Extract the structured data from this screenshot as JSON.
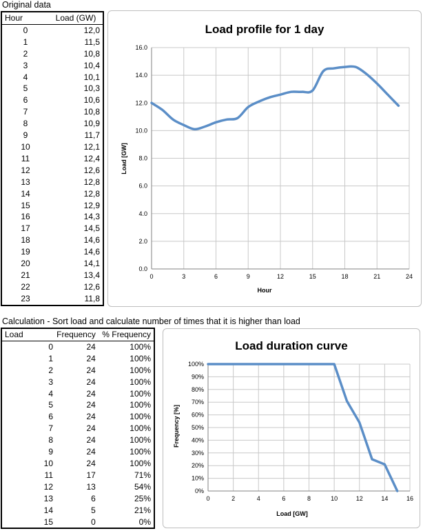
{
  "sheet1": {
    "caption": "Original data",
    "headers": [
      "Hour",
      "Load (GW)"
    ],
    "rows": [
      [
        "0",
        "12,0"
      ],
      [
        "1",
        "11,5"
      ],
      [
        "2",
        "10,8"
      ],
      [
        "3",
        "10,4"
      ],
      [
        "4",
        "10,1"
      ],
      [
        "5",
        "10,3"
      ],
      [
        "6",
        "10,6"
      ],
      [
        "7",
        "10,8"
      ],
      [
        "8",
        "10,9"
      ],
      [
        "9",
        "11,7"
      ],
      [
        "10",
        "12,1"
      ],
      [
        "11",
        "12,4"
      ],
      [
        "12",
        "12,6"
      ],
      [
        "13",
        "12,8"
      ],
      [
        "14",
        "12,8"
      ],
      [
        "15",
        "12,9"
      ],
      [
        "16",
        "14,3"
      ],
      [
        "17",
        "14,5"
      ],
      [
        "18",
        "14,6"
      ],
      [
        "19",
        "14,6"
      ],
      [
        "20",
        "14,1"
      ],
      [
        "21",
        "13,4"
      ],
      [
        "22",
        "12,6"
      ],
      [
        "23",
        "11,8"
      ]
    ]
  },
  "sheet2": {
    "caption": "Calculation - Sort load and calculate number of times that it is higher than load",
    "headers": [
      "Load",
      "Frequency",
      "% Frequency"
    ],
    "rows": [
      [
        "0",
        "24",
        "100%"
      ],
      [
        "1",
        "24",
        "100%"
      ],
      [
        "2",
        "24",
        "100%"
      ],
      [
        "3",
        "24",
        "100%"
      ],
      [
        "4",
        "24",
        "100%"
      ],
      [
        "5",
        "24",
        "100%"
      ],
      [
        "6",
        "24",
        "100%"
      ],
      [
        "7",
        "24",
        "100%"
      ],
      [
        "8",
        "24",
        "100%"
      ],
      [
        "9",
        "24",
        "100%"
      ],
      [
        "10",
        "24",
        "100%"
      ],
      [
        "11",
        "17",
        "71%"
      ],
      [
        "12",
        "13",
        "54%"
      ],
      [
        "13",
        "6",
        "25%"
      ],
      [
        "14",
        "5",
        "21%"
      ],
      [
        "15",
        "0",
        "0%"
      ]
    ]
  },
  "chart_data": [
    {
      "type": "line",
      "title": "Load profile for 1 day",
      "xlabel": "Hour",
      "ylabel": "Load [GW]",
      "xlim": [
        0,
        24
      ],
      "ylim": [
        0,
        16
      ],
      "xticks": [
        0,
        3,
        6,
        9,
        12,
        15,
        18,
        21,
        24
      ],
      "yticks": [
        0,
        2,
        4,
        6,
        8,
        10,
        12,
        14,
        16
      ],
      "ytick_labels": [
        "0.0",
        "2.0",
        "4.0",
        "6.0",
        "8.0",
        "10.0",
        "12.0",
        "14.0",
        "16.0"
      ],
      "grid": true,
      "smooth": true,
      "color": "#5b8ec7",
      "x": [
        0,
        1,
        2,
        3,
        4,
        5,
        6,
        7,
        8,
        9,
        10,
        11,
        12,
        13,
        14,
        15,
        16,
        17,
        18,
        19,
        20,
        21,
        22,
        23
      ],
      "y": [
        12.0,
        11.5,
        10.8,
        10.4,
        10.1,
        10.3,
        10.6,
        10.8,
        10.9,
        11.7,
        12.1,
        12.4,
        12.6,
        12.8,
        12.8,
        12.9,
        14.3,
        14.5,
        14.6,
        14.6,
        14.1,
        13.4,
        12.6,
        11.8
      ]
    },
    {
      "type": "line",
      "title": "Load duration curve",
      "xlabel": "Load [GW]",
      "ylabel": "Frequency [%]",
      "xlim": [
        0,
        16
      ],
      "ylim": [
        0,
        100
      ],
      "xticks": [
        0,
        2,
        4,
        6,
        8,
        10,
        12,
        14,
        16
      ],
      "yticks": [
        0,
        10,
        20,
        30,
        40,
        50,
        60,
        70,
        80,
        90,
        100
      ],
      "ytick_labels": [
        "0%",
        "10%",
        "20%",
        "30%",
        "40%",
        "50%",
        "60%",
        "70%",
        "80%",
        "90%",
        "100%"
      ],
      "grid": true,
      "smooth": false,
      "color": "#5b8ec7",
      "x": [
        0,
        1,
        2,
        3,
        4,
        5,
        6,
        7,
        8,
        9,
        10,
        11,
        12,
        13,
        14,
        15
      ],
      "y": [
        100,
        100,
        100,
        100,
        100,
        100,
        100,
        100,
        100,
        100,
        100,
        71,
        54,
        25,
        21,
        0
      ]
    }
  ]
}
